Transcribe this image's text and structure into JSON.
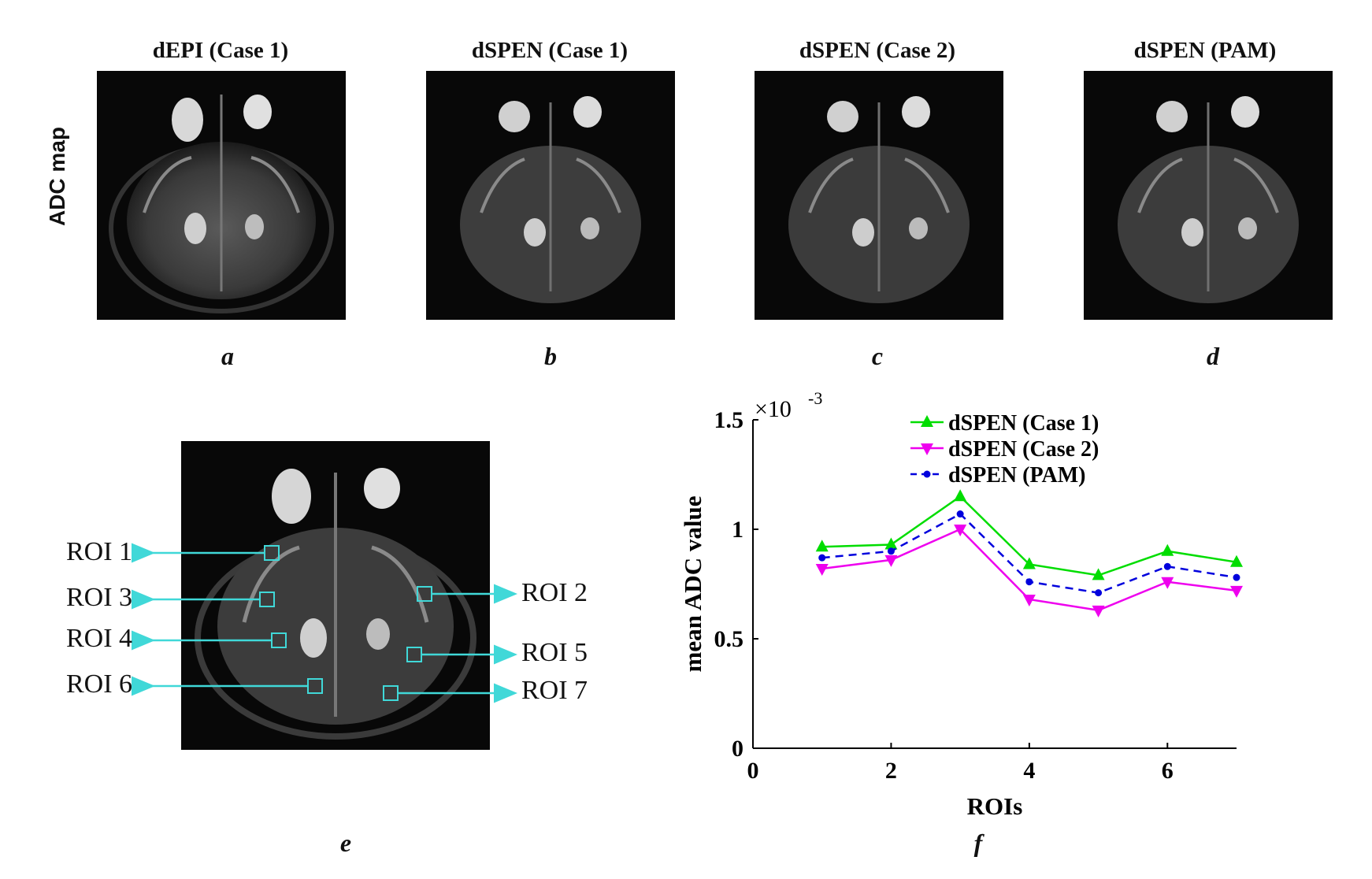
{
  "row_label": "ADC map",
  "panels": [
    {
      "title": "dEPI (Case 1)",
      "label": "a"
    },
    {
      "title": "dSPEN (Case 1)",
      "label": "b"
    },
    {
      "title": "dSPEN (Case 2)",
      "label": "c"
    },
    {
      "title": "dSPEN (PAM)",
      "label": "d"
    }
  ],
  "roi_panel": {
    "label": "e",
    "rois_left": [
      "ROI 1",
      "ROI 3",
      "ROI 4",
      "ROI 6"
    ],
    "rois_right": [
      "ROI 2",
      "ROI 5",
      "ROI 7"
    ]
  },
  "chart_label": "f",
  "colors": {
    "green": "#00dd00",
    "magenta": "#ee00ee",
    "blue": "#0000dd",
    "roi": "#40d8d8"
  },
  "chart_data": {
    "type": "line",
    "xlabel": "ROIs",
    "ylabel": "mean ADC value",
    "exponent_label": "×10",
    "exponent_power": "-3",
    "xlim": [
      0,
      7
    ],
    "ylim": [
      0,
      1.5
    ],
    "xticks": [
      "0",
      "2",
      "4",
      "6"
    ],
    "yticks": [
      "0",
      "0.5",
      "1",
      "1.5"
    ],
    "x": [
      1,
      2,
      3,
      4,
      5,
      6,
      7
    ],
    "series": [
      {
        "name": "dSPEN (Case 1)",
        "values": [
          0.92,
          0.93,
          1.15,
          0.84,
          0.79,
          0.9,
          0.85
        ]
      },
      {
        "name": "dSPEN (Case 2)",
        "values": [
          0.82,
          0.86,
          1.0,
          0.68,
          0.63,
          0.76,
          0.72
        ]
      },
      {
        "name": "dSPEN (PAM)",
        "values": [
          0.87,
          0.9,
          1.07,
          0.76,
          0.71,
          0.83,
          0.78
        ]
      }
    ],
    "legend_position": "top-right"
  }
}
